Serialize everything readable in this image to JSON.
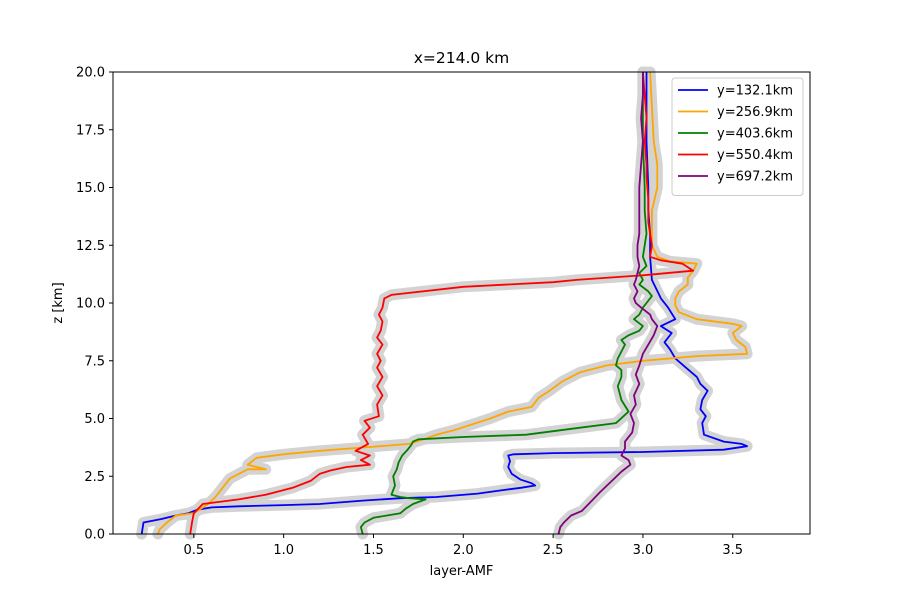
{
  "chart_data": {
    "type": "line",
    "title": "x=214.0 km",
    "xlabel": "layer-AMF",
    "ylabel": "z [km]",
    "xlim": [
      0.05,
      3.93
    ],
    "ylim": [
      0,
      20
    ],
    "xticks": [
      0.5,
      1.0,
      1.5,
      2.0,
      2.5,
      3.0,
      3.5
    ],
    "xtick_labels": [
      "0.5",
      "1.0",
      "1.5",
      "2.0",
      "2.5",
      "3.0",
      "3.5"
    ],
    "yticks": [
      0,
      2.5,
      5,
      7.5,
      10,
      12.5,
      15,
      17.5,
      20
    ],
    "ytick_labels": [
      "0.0",
      "2.5",
      "5.0",
      "7.5",
      "10.0",
      "12.5",
      "15.0",
      "17.5",
      "20.0"
    ],
    "grid": false,
    "legend_position": "top-right",
    "uncertainty_band_color": "#d3d3d3",
    "series": [
      {
        "name": "y=132.1km",
        "color": "#0000ff",
        "x": [
          0.21,
          0.22,
          0.32,
          0.4,
          0.47,
          0.52,
          0.6,
          0.75,
          1.0,
          1.2,
          1.45,
          1.65,
          1.85,
          2.08,
          2.22,
          2.32,
          2.4,
          2.38,
          2.32,
          2.27,
          2.25,
          2.26,
          2.25,
          2.28,
          2.5,
          3.0,
          3.45,
          3.58,
          3.55,
          3.45,
          3.34,
          3.33,
          3.35,
          3.32,
          3.33,
          3.36,
          3.32,
          3.3,
          3.24,
          3.18,
          3.15,
          3.12,
          3.16,
          3.1,
          3.18,
          3.14,
          3.1,
          3.05,
          3.04,
          3.04,
          3.03,
          3.03,
          3.02,
          3.02
        ],
        "y": [
          0.0,
          0.5,
          0.65,
          0.8,
          0.9,
          1.05,
          1.15,
          1.2,
          1.25,
          1.3,
          1.45,
          1.55,
          1.6,
          1.75,
          1.9,
          2.0,
          2.1,
          2.2,
          2.35,
          2.6,
          2.9,
          3.15,
          3.4,
          3.45,
          3.5,
          3.55,
          3.65,
          3.8,
          3.9,
          4.0,
          4.3,
          4.8,
          5.1,
          5.4,
          5.8,
          6.2,
          6.5,
          6.8,
          7.2,
          7.6,
          8.0,
          8.3,
          8.7,
          9.0,
          9.3,
          9.8,
          10.2,
          11.0,
          12.0,
          13.0,
          14.0,
          15.0,
          17.0,
          20.0
        ]
      },
      {
        "name": "y=256.9km",
        "color": "#ffa500",
        "x": [
          0.3,
          0.31,
          0.35,
          0.4,
          0.5,
          0.58,
          0.62,
          0.66,
          0.7,
          0.75,
          0.8,
          0.9,
          0.8,
          0.85,
          1.0,
          1.2,
          1.45,
          1.7,
          1.78,
          1.85,
          1.95,
          2.05,
          2.15,
          2.25,
          2.38,
          2.42,
          2.48,
          2.55,
          2.65,
          2.8,
          3.0,
          3.3,
          3.58,
          3.57,
          3.52,
          3.5,
          3.55,
          3.5,
          3.3,
          3.2,
          3.18,
          3.18,
          3.2,
          3.25,
          3.25,
          3.28,
          3.3,
          3.15,
          3.08,
          3.05,
          3.05,
          3.08,
          3.08,
          3.06,
          3.05,
          3.04
        ],
        "y": [
          0.0,
          0.2,
          0.5,
          0.8,
          0.9,
          1.3,
          1.6,
          2.0,
          2.4,
          2.6,
          2.8,
          2.8,
          3.0,
          3.3,
          3.45,
          3.6,
          3.75,
          3.9,
          4.1,
          4.3,
          4.5,
          4.75,
          5.0,
          5.3,
          5.5,
          5.9,
          6.2,
          6.6,
          7.0,
          7.3,
          7.5,
          7.7,
          7.8,
          8.1,
          8.4,
          8.7,
          9.0,
          9.1,
          9.3,
          9.6,
          9.9,
          10.2,
          10.5,
          10.8,
          11.1,
          11.4,
          11.7,
          11.8,
          12.0,
          12.5,
          14.0,
          15.0,
          16.0,
          17.0,
          18.5,
          20.0
        ]
      },
      {
        "name": "y=403.6km",
        "color": "#008000",
        "x": [
          1.44,
          1.43,
          1.45,
          1.5,
          1.65,
          1.68,
          1.72,
          1.79,
          1.7,
          1.65,
          1.6,
          1.62,
          1.61,
          1.63,
          1.64,
          1.66,
          1.69,
          1.71,
          1.72,
          1.75,
          2.0,
          2.35,
          2.65,
          2.85,
          2.92,
          2.88,
          2.86,
          2.88,
          2.88,
          2.85,
          2.86,
          2.88,
          2.9,
          2.88,
          2.92,
          2.98,
          3.0,
          2.95,
          2.98,
          3.0,
          3.02,
          3.05,
          3.03,
          2.98,
          3.0,
          2.98,
          3.02,
          3.0,
          3.02,
          3.01,
          3.01,
          3.0,
          3.0
        ],
        "y": [
          0.0,
          0.3,
          0.5,
          0.7,
          0.9,
          1.1,
          1.3,
          1.5,
          1.55,
          1.6,
          1.7,
          2.1,
          2.5,
          2.8,
          3.1,
          3.4,
          3.65,
          3.85,
          4.0,
          4.1,
          4.2,
          4.3,
          4.6,
          4.8,
          5.3,
          5.8,
          6.4,
          6.8,
          7.1,
          7.3,
          7.6,
          7.9,
          8.2,
          8.4,
          8.6,
          8.8,
          9.0,
          9.3,
          9.5,
          9.8,
          10.0,
          10.3,
          10.5,
          10.8,
          11.0,
          11.3,
          11.6,
          12.0,
          13.0,
          14.0,
          15.0,
          17.0,
          20.0
        ]
      },
      {
        "name": "y=550.4km",
        "color": "#ff0000",
        "x": [
          0.48,
          0.49,
          0.5,
          0.55,
          0.75,
          0.9,
          1.05,
          1.15,
          1.2,
          1.26,
          1.35,
          1.48,
          1.43,
          1.48,
          1.4,
          1.47,
          1.44,
          1.48,
          1.45,
          1.53,
          1.52,
          1.55,
          1.52,
          1.55,
          1.52,
          1.54,
          1.52,
          1.55,
          1.52,
          1.54,
          1.55,
          1.53,
          1.55,
          1.56,
          1.6,
          2.0,
          2.5,
          2.63,
          3.0,
          3.28,
          3.22,
          3.1,
          3.04,
          3.05,
          3.03,
          3.03,
          3.02,
          3.02,
          3.01,
          3.02,
          3.01,
          3.0
        ],
        "y": [
          0.0,
          0.5,
          0.9,
          1.3,
          1.5,
          1.7,
          2.0,
          2.3,
          2.6,
          2.75,
          2.9,
          3.0,
          3.2,
          3.4,
          3.6,
          3.9,
          4.3,
          4.6,
          4.9,
          5.1,
          5.6,
          6.0,
          6.4,
          6.8,
          7.2,
          7.5,
          7.8,
          8.2,
          8.5,
          8.8,
          9.2,
          9.5,
          9.8,
          10.2,
          10.35,
          10.7,
          10.9,
          11.0,
          11.2,
          11.4,
          11.7,
          11.85,
          12.0,
          12.5,
          13.5,
          14.5,
          15.5,
          16.0,
          17.0,
          18.0,
          19.0,
          20.0
        ]
      },
      {
        "name": "y=697.2km",
        "color": "#800080",
        "x": [
          2.53,
          2.54,
          2.56,
          2.6,
          2.66,
          2.71,
          2.76,
          2.8,
          2.84,
          2.88,
          2.93,
          2.92,
          2.88,
          2.9,
          2.9,
          2.94,
          2.95,
          2.93,
          2.96,
          2.95,
          2.98,
          2.96,
          2.98,
          3.0,
          3.03,
          3.06,
          3.08,
          3.05,
          3.04,
          2.99,
          2.96,
          2.95,
          2.97,
          2.95,
          2.96,
          2.97,
          2.98,
          2.97,
          2.97,
          2.98,
          2.98,
          2.98,
          2.99,
          3.0,
          2.99,
          3.0,
          3.0
        ],
        "y": [
          0.0,
          0.3,
          0.5,
          0.8,
          1.0,
          1.4,
          1.8,
          2.1,
          2.4,
          2.7,
          3.0,
          3.2,
          3.4,
          3.7,
          4.0,
          4.4,
          4.8,
          5.2,
          5.6,
          6.0,
          6.5,
          6.9,
          7.3,
          7.8,
          8.2,
          8.6,
          9.0,
          9.3,
          9.5,
          9.8,
          10.0,
          10.2,
          10.5,
          10.8,
          11.0,
          11.3,
          11.6,
          12.0,
          12.5,
          13.0,
          14.0,
          15.0,
          16.0,
          17.0,
          18.0,
          19.0,
          20.0
        ]
      }
    ]
  }
}
